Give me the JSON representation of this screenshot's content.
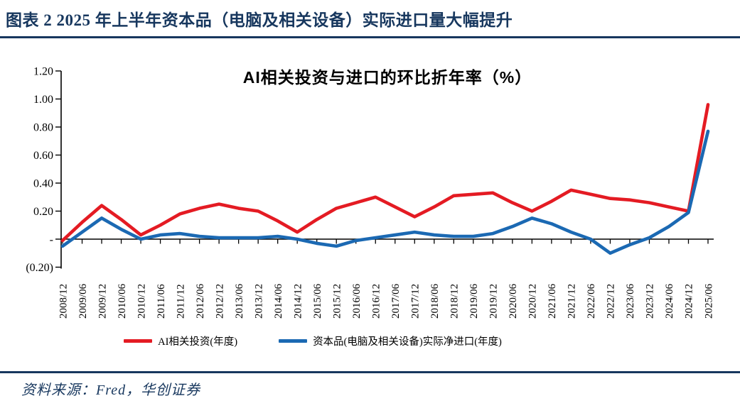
{
  "figure": {
    "title": "图表 2  2025 年上半年资本品（电脑及相关设备）实际进口量大幅提升",
    "source": "资料来源：Fred，华创证券"
  },
  "colors": {
    "navy": "#17375E",
    "red": "#E41B23",
    "blue": "#1B69B3",
    "axis": "#000000"
  },
  "chart_data": {
    "type": "line",
    "title": "AI相关投资与进口的环比折年率（%）",
    "xlabel": "",
    "ylabel": "",
    "grid": false,
    "legend_position": "bottom",
    "ylim": [
      -0.2,
      1.2
    ],
    "y_tick_labels": [
      "1.20",
      "1.00",
      "0.80",
      "0.60",
      "0.40",
      "0.20",
      "-",
      "(0.20)"
    ],
    "y_tick_values": [
      1.2,
      1.0,
      0.8,
      0.6,
      0.4,
      0.2,
      0.0,
      -0.2
    ],
    "categories": [
      "2008/12",
      "2009/06",
      "2009/12",
      "2010/06",
      "2010/12",
      "2011/06",
      "2011/12",
      "2012/06",
      "2012/12",
      "2013/06",
      "2013/12",
      "2014/06",
      "2014/12",
      "2015/06",
      "2015/12",
      "2016/06",
      "2016/12",
      "2017/06",
      "2017/12",
      "2018/06",
      "2018/12",
      "2019/06",
      "2019/12",
      "2020/06",
      "2020/12",
      "2021/06",
      "2021/12",
      "2022/06",
      "2022/12",
      "2023/06",
      "2023/12",
      "2024/06",
      "2024/12",
      "2025/06"
    ],
    "series": [
      {
        "name": "AI相关投资(年度)",
        "color": "#E41B23",
        "values": [
          -0.01,
          0.12,
          0.24,
          0.14,
          0.03,
          0.1,
          0.18,
          0.22,
          0.25,
          0.22,
          0.2,
          0.13,
          0.05,
          0.14,
          0.22,
          0.26,
          0.3,
          0.23,
          0.16,
          0.23,
          0.31,
          0.32,
          0.33,
          0.26,
          0.2,
          0.27,
          0.35,
          0.32,
          0.29,
          0.28,
          0.26,
          0.23,
          0.2,
          0.96
        ]
      },
      {
        "name": "资本品(电脑及相关设备)实际净进口(年度)",
        "color": "#1B69B3",
        "values": [
          -0.05,
          0.05,
          0.15,
          0.07,
          0.0,
          0.03,
          0.04,
          0.02,
          0.01,
          0.01,
          0.01,
          0.02,
          0.0,
          -0.03,
          -0.05,
          -0.01,
          0.01,
          0.03,
          0.05,
          0.03,
          0.02,
          0.02,
          0.04,
          0.09,
          0.15,
          0.11,
          0.05,
          0.0,
          -0.1,
          -0.04,
          0.01,
          0.09,
          0.19,
          0.77
        ]
      }
    ]
  }
}
